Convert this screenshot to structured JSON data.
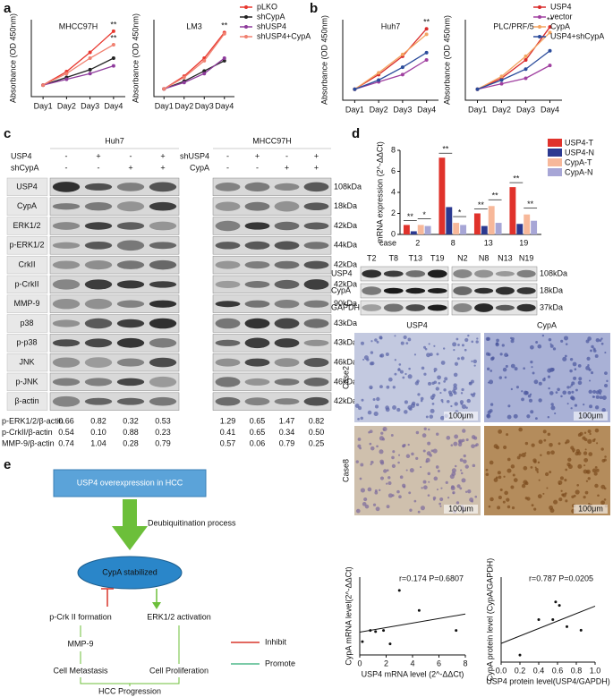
{
  "panel_labels": [
    "a",
    "b",
    "c",
    "d",
    "e"
  ],
  "chart_data": [
    {
      "type": "line",
      "title": "MHCC97H",
      "categories": [
        "Day1",
        "Day2",
        "Day3",
        "Day4"
      ],
      "y_label": "Absorbance (OD 450nm)",
      "ylim": [
        0,
        2
      ],
      "series": [
        {
          "color": "#e8382f",
          "values": [
            0.3,
            0.65,
            1.15,
            1.7
          ]
        },
        {
          "color": "#222222",
          "values": [
            0.3,
            0.5,
            0.7,
            1.0
          ]
        },
        {
          "color": "#8e3b9c",
          "values": [
            0.3,
            0.45,
            0.6,
            0.8
          ]
        },
        {
          "color": "#f08070",
          "values": [
            0.3,
            0.6,
            1.0,
            1.35
          ]
        }
      ],
      "annotations": [
        "**",
        "**"
      ]
    },
    {
      "type": "line",
      "title": "LM3",
      "categories": [
        "Day1",
        "Day2",
        "Day3",
        "Day4"
      ],
      "y_label": "Absorbance (OD 450nm)",
      "ylim": [
        0,
        3
      ],
      "series": [
        {
          "name": "pLKO",
          "color": "#e8382f",
          "values": [
            0.3,
            0.8,
            1.5,
            2.5
          ]
        },
        {
          "name": "shCypA",
          "color": "#222222",
          "values": [
            0.3,
            0.6,
            1.0,
            1.4
          ]
        },
        {
          "name": "shUSP4",
          "color": "#8e3b9c",
          "values": [
            0.3,
            0.55,
            0.9,
            1.5
          ]
        },
        {
          "name": "shUSP4+CypA",
          "color": "#f08070",
          "values": [
            0.3,
            0.75,
            1.4,
            2.45
          ]
        }
      ],
      "annotations": [
        "**"
      ]
    },
    {
      "type": "line",
      "title": "Huh7",
      "categories": [
        "Day1",
        "Day2",
        "Day3",
        "Day4"
      ],
      "y_label": "Absorbance (OD 450nm)",
      "ylim": [
        0,
        2.2
      ],
      "series": [
        {
          "color": "#d92b2b",
          "values": [
            0.3,
            0.7,
            1.2,
            1.95
          ]
        },
        {
          "color": "#a040a0",
          "values": [
            0.3,
            0.5,
            0.7,
            1.1
          ]
        },
        {
          "color": "#f4a460",
          "values": [
            0.3,
            0.75,
            1.25,
            1.8
          ]
        },
        {
          "color": "#2a4b9b",
          "values": [
            0.3,
            0.55,
            0.9,
            1.3
          ]
        }
      ],
      "annotations": [
        "**"
      ]
    },
    {
      "type": "line",
      "title": "PLC/PRF/5",
      "categories": [
        "Day1",
        "Day2",
        "Day3",
        "Day4"
      ],
      "y_label": "Absorbance (OD 450nm)",
      "ylim": [
        0,
        2.2
      ],
      "series": [
        {
          "name": "USP4",
          "color": "#d92b2b",
          "values": [
            0.3,
            0.6,
            1.1,
            2.0
          ]
        },
        {
          "name": "vector",
          "color": "#a040a0",
          "values": [
            0.3,
            0.45,
            0.6,
            0.95
          ]
        },
        {
          "name": "CypA",
          "color": "#f4a460",
          "values": [
            0.3,
            0.65,
            1.2,
            1.85
          ]
        },
        {
          "name": "USP4+shCypA",
          "color": "#2a4b9b",
          "values": [
            0.3,
            0.55,
            0.85,
            1.35
          ]
        }
      ],
      "annotations": [
        "**"
      ]
    },
    {
      "type": "bar",
      "y_label": "mRNA expression (2^-ΔΔCt)",
      "x_label": "case",
      "categories": [
        "2",
        "8",
        "13",
        "19"
      ],
      "ylim": [
        0,
        8
      ],
      "yticks": [
        0,
        2,
        4,
        6,
        8
      ],
      "series": [
        {
          "name": "USP4-T",
          "color": "#e0322b",
          "values": [
            0.9,
            7.3,
            2.0,
            4.5
          ]
        },
        {
          "name": "USP4-N",
          "color": "#2b3990",
          "values": [
            0.3,
            2.6,
            0.8,
            1.0
          ]
        },
        {
          "name": "CypA-T",
          "color": "#f7b89a",
          "values": [
            0.9,
            1.1,
            2.7,
            1.9
          ]
        },
        {
          "name": "CypA-N",
          "color": "#a7a6d6",
          "values": [
            0.8,
            0.9,
            1.1,
            1.3
          ]
        }
      ],
      "significance": [
        [
          "**",
          "*"
        ],
        [
          "**",
          "*"
        ],
        [
          "**",
          "**"
        ],
        [
          "**",
          "**"
        ]
      ]
    },
    {
      "type": "scatter",
      "x": [
        0.2,
        0.8,
        1.2,
        1.8,
        2.3,
        3.0,
        4.5,
        7.3
      ],
      "values": [
        0.6,
        1.1,
        1.05,
        1.1,
        0.5,
        2.9,
        2.0,
        1.1
      ],
      "xlim": [
        0,
        8
      ],
      "ylim": [
        0,
        3.5
      ],
      "xticks": [
        0,
        2,
        4,
        6,
        8
      ],
      "x_label": "USP4 mRNA level (2^-ΔΔCt)",
      "y_label": "CypA mRNA level(2^-ΔΔCt)",
      "annotation": "r=0.174  P=0.6807"
    },
    {
      "type": "scatter",
      "x": [
        0.2,
        0.4,
        0.55,
        0.58,
        0.62,
        0.7,
        0.85
      ],
      "values": [
        0.1,
        0.6,
        0.6,
        0.85,
        0.8,
        0.5,
        0.45
      ],
      "xlim": [
        0,
        1
      ],
      "ylim": [
        0,
        1.2
      ],
      "xticks": [
        {
          "value": 0,
          "label": "0.0"
        },
        0.2,
        0.4,
        0.6,
        0.8,
        {
          "value": 1,
          "label": "1.0"
        }
      ],
      "x_label": "USP4 protein level(USP4/GAPDH)",
      "y_label": "CypA protein level (CypA/GAPDH)",
      "annotation": "r=0.787  P=0.0205"
    }
  ],
  "blot_c": {
    "cell_lines": [
      "Huh7",
      "MHCC97H"
    ],
    "conditions": [
      [
        {
          "label": "USP4",
          "signs": [
            "-",
            "+",
            "-",
            "+"
          ]
        },
        {
          "label": "shCypA",
          "signs": [
            "-",
            "-",
            "+",
            "+"
          ]
        }
      ],
      [
        {
          "label": "shUSP4",
          "signs": [
            "-",
            "+",
            "-",
            "+"
          ]
        },
        {
          "label": "CypA",
          "signs": [
            "-",
            "-",
            "+",
            "+"
          ]
        }
      ]
    ],
    "proteins": [
      "USP4",
      "CypA",
      "ERK1/2",
      "p-ERK1/2",
      "CrkII",
      "p-CrkII",
      "MMP-9",
      "p38",
      "p-p38",
      "JNK",
      "p-JNK",
      "β-actin"
    ],
    "sizes": [
      "108kDa",
      "18kDa",
      "42kDa",
      "44kDa",
      "42kDa",
      "42kDa",
      "90kDa",
      "43kDa",
      "43kDa",
      "46kDa",
      "46kDa",
      "42kDa"
    ],
    "ratios": [
      {
        "label": "p-ERK1/2/β-actin",
        "values": [
          [
            "0.66",
            "0.82",
            "0.32",
            "0.53"
          ],
          [
            "1.29",
            "0.65",
            "1.47",
            "0.82"
          ]
        ]
      },
      {
        "label": "p-CrkII/β-actin",
        "values": [
          [
            "0.54",
            "0.10",
            "0.88",
            "0.23"
          ],
          [
            "0.41",
            "0.65",
            "0.34",
            "0.50"
          ]
        ]
      },
      {
        "label": "MMP-9/β-actin",
        "values": [
          [
            "0.74",
            "1.04",
            "0.28",
            "0.79"
          ],
          [
            "0.57",
            "0.06",
            "0.79",
            "0.25"
          ]
        ]
      }
    ]
  },
  "blot_d": {
    "columns": [
      [
        "T2",
        "T8",
        "T13",
        "T19"
      ],
      [
        "N2",
        "N8",
        "N13",
        "N19"
      ]
    ],
    "proteins": [
      "USP4",
      "CypA",
      "GAPDH"
    ],
    "sizes": [
      "108kDa",
      "18kDa",
      "37kDa"
    ]
  },
  "ihc": {
    "columns": [
      "USP4",
      "CypA"
    ],
    "rows": [
      "Case2",
      "Case8"
    ],
    "scale_bar": "100μm"
  },
  "diagram": {
    "top": "USP4 overexpression in HCC",
    "process": "Deubiquitination process",
    "center": "CypA stabilized",
    "left": "p-Crk II formation",
    "right": "ERK1/2 activation",
    "mmp": "MMP-9",
    "left_outcome": "Cell Metastasis",
    "right_outcome": "Cell Proliferation",
    "final": "HCC Progression",
    "legend": [
      "Inhibit",
      "Promote"
    ]
  }
}
